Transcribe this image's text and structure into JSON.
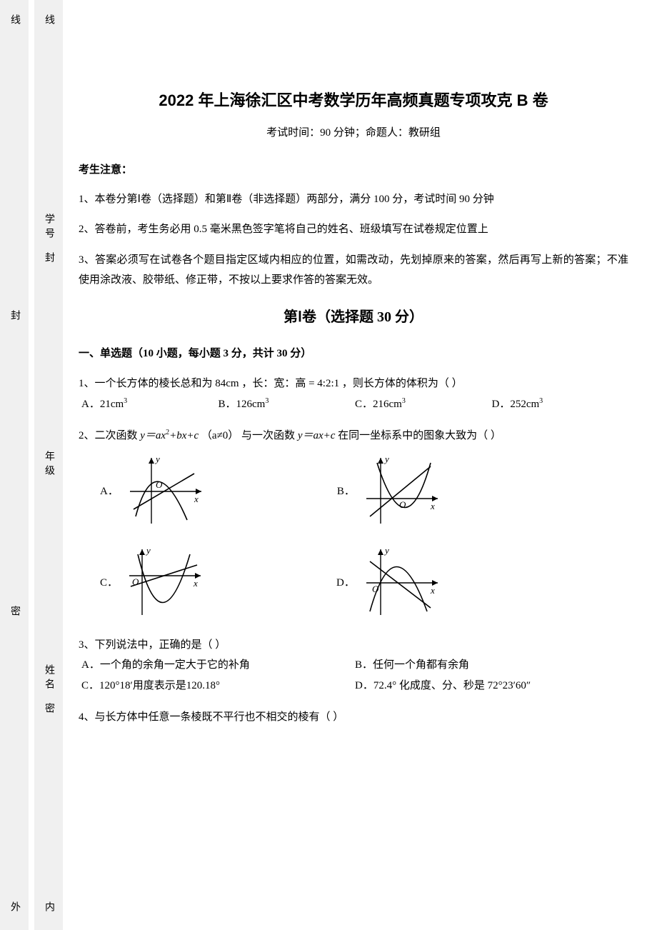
{
  "margin": {
    "outer": {
      "labels": [
        "线",
        "封",
        "密",
        "外"
      ]
    },
    "inner": {
      "labels": [
        "线",
        "封",
        "密",
        "内"
      ],
      "fields": [
        "学号",
        "年级",
        "姓名"
      ]
    },
    "dot_color": "#000000",
    "circle_color": "#000000",
    "bg_color": "#f0f0f0"
  },
  "header": {
    "title": "2022 年上海徐汇区中考数学历年高频真题专项攻克 B 卷",
    "subtitle": "考试时间：90 分钟；命题人：教研组"
  },
  "notice": {
    "heading": "考生注意：",
    "items": [
      "1、本卷分第Ⅰ卷（选择题）和第Ⅱ卷（非选择题）两部分，满分 100 分，考试时间 90 分钟",
      "2、答卷前，考生务必用 0.5 毫米黑色签字笔将自己的姓名、班级填写在试卷规定位置上",
      "3、答案必须写在试卷各个题目指定区域内相应的位置，如需改动，先划掉原来的答案，然后再写上新的答案；不准使用涂改液、胶带纸、修正带，不按以上要求作答的答案无效。"
    ]
  },
  "section1": {
    "title": "第Ⅰ卷（选择题  30 分）",
    "instructions": "一、单选题（10 小题，每小题 3 分，共计 30 分）"
  },
  "q1": {
    "stem_pre": "1、一个长方体的棱长总和为 84cm ，长：宽：高 = 4:2:1 ，则长方体的体积为（    ）",
    "opts": {
      "A": "A．21cm",
      "B": "B．126cm",
      "C": "C．216cm",
      "D": "D．252cm"
    },
    "sup": "3"
  },
  "q2": {
    "stem": "2、二次函数 ",
    "f1a": "y＝ax",
    "f1b": "+bx+c",
    "cond": "（a≠0）",
    "mid": "与一次函数 ",
    "f2": "y＝ax+c",
    "tail": " 在同一坐标系中的图象大致为（    ）",
    "labels": {
      "A": "A．",
      "B": "B．",
      "C": "C．",
      "D": "D．"
    },
    "axis": {
      "x": "x",
      "y": "y",
      "o": "O"
    },
    "graph": {
      "stroke": "#000000",
      "stroke_width": 1.4,
      "width": 120,
      "height": 110
    }
  },
  "q3": {
    "stem": "3、下列说法中，正确的是（    ）",
    "opts": {
      "A": "A．一个角的余角一定大于它的补角",
      "B": "B．任何一个角都有余角",
      "C": "C．120°18′用度表示是120.18°",
      "D": "D．72.4° 化成度、分、秒是 72°23′60″"
    }
  },
  "q4": {
    "stem": "4、与长方体中任意一条棱既不平行也不相交的棱有（    ）"
  },
  "colors": {
    "text": "#000000",
    "background": "#ffffff"
  }
}
